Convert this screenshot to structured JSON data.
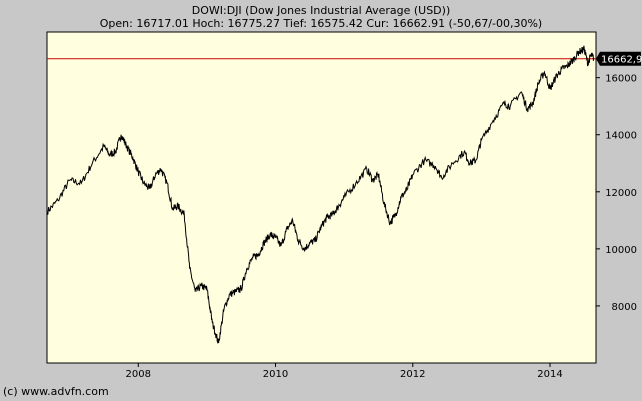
{
  "chart_data": {
    "type": "line",
    "title": "DOWI:DJI (Dow Jones Industrial Average (USD))",
    "subtitle": "Open: 16717.01 Hoch: 16775.27 Tief: 16575.42 Cur: 16662.91 (-50,67/-00,30%)",
    "xlabel": "",
    "ylabel": "",
    "x_ticks": [
      "2008",
      "2010",
      "2012",
      "2014"
    ],
    "y_ticks": [
      "8000",
      "10000",
      "12000",
      "14000",
      "16000"
    ],
    "ylim": [
      6000,
      17600
    ],
    "xlim": [
      2006.67,
      2014.67
    ],
    "grid": false,
    "current_value": 16662.91,
    "current_label": "16662,9",
    "colors": {
      "plot_bg": "#ffffe0",
      "line": "#000000",
      "current_line": "#cc0000",
      "current_box": "#000000"
    },
    "series": [
      {
        "x": [
          2006.67,
          2006.83,
          2007.0,
          2007.17,
          2007.33,
          2007.5,
          2007.58,
          2007.67,
          2007.75,
          2007.83,
          2007.92,
          2008.0,
          2008.08,
          2008.17,
          2008.25,
          2008.33,
          2008.42,
          2008.5,
          2008.58,
          2008.67,
          2008.75,
          2008.83,
          2008.92,
          2009.0,
          2009.08,
          2009.17,
          2009.25,
          2009.33,
          2009.42,
          2009.5,
          2009.58,
          2009.67,
          2009.75,
          2009.83,
          2009.92,
          2010.0,
          2010.08,
          2010.17,
          2010.25,
          2010.33,
          2010.42,
          2010.5,
          2010.58,
          2010.67,
          2010.75,
          2010.83,
          2010.92,
          2011.0,
          2011.17,
          2011.33,
          2011.42,
          2011.5,
          2011.58,
          2011.67,
          2011.75,
          2011.83,
          2011.92,
          2012.0,
          2012.17,
          2012.33,
          2012.42,
          2012.58,
          2012.75,
          2012.83,
          2012.92,
          2013.0,
          2013.17,
          2013.33,
          2013.42,
          2013.58,
          2013.67,
          2013.75,
          2013.83,
          2013.92,
          2014.0,
          2014.08,
          2014.17,
          2014.25,
          2014.33,
          2014.42,
          2014.5,
          2014.55,
          2014.6,
          2014.64
        ],
        "values": [
          11300,
          11700,
          12400,
          12300,
          13000,
          13600,
          13300,
          13400,
          14000,
          13600,
          13200,
          12700,
          12300,
          12100,
          12600,
          12800,
          12300,
          11400,
          11500,
          11200,
          9300,
          8500,
          8700,
          8600,
          7400,
          6700,
          7900,
          8400,
          8500,
          8600,
          9300,
          9700,
          9800,
          10200,
          10500,
          10400,
          10100,
          10700,
          11000,
          10300,
          10000,
          10200,
          10300,
          10800,
          11100,
          11200,
          11500,
          11800,
          12300,
          12800,
          12400,
          12600,
          11600,
          10900,
          11200,
          11800,
          12100,
          12600,
          13100,
          12900,
          12500,
          13000,
          13400,
          13000,
          13100,
          13800,
          14500,
          15100,
          15000,
          15500,
          14900,
          15100,
          15800,
          16200,
          15600,
          16000,
          16300,
          16400,
          16600,
          16900,
          17000,
          16500,
          16800,
          16662.91
        ]
      }
    ]
  }
}
